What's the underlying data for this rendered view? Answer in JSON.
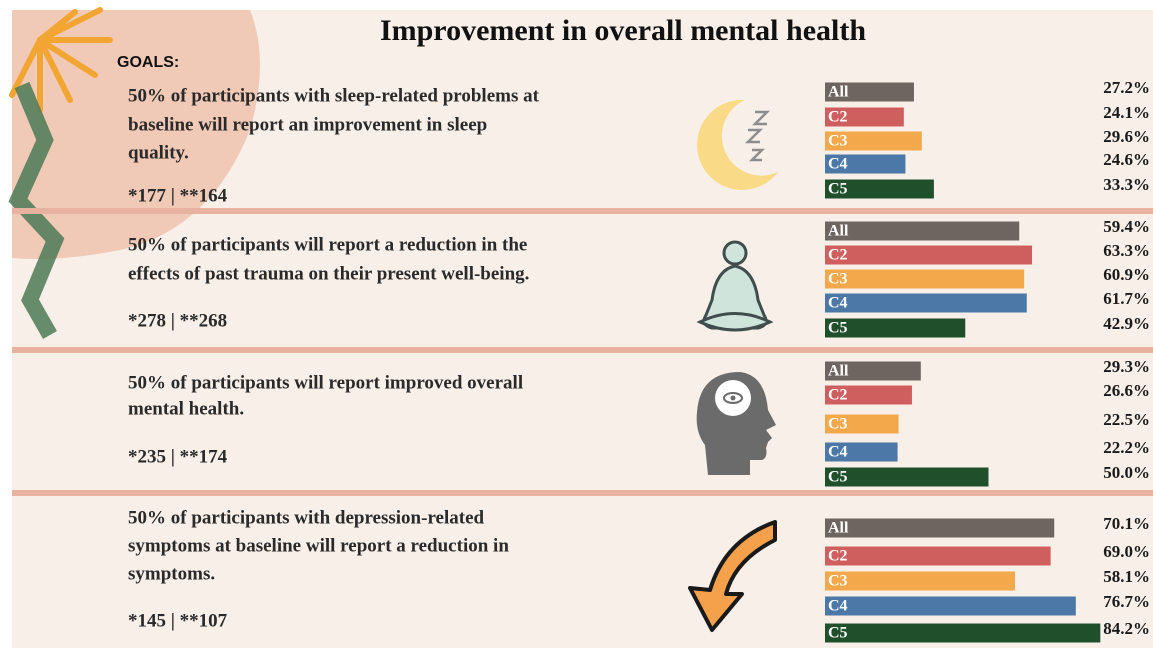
{
  "title": "Improvement in overall mental health",
  "goals_label": "GOALS:",
  "chart_data": [
    {
      "type": "bar",
      "description": [
        "50% of participants with sleep-related problems at",
        "baseline will report an improvement in sleep",
        "quality."
      ],
      "counts": "*177 | **164",
      "categories": [
        "All",
        "C2",
        "C3",
        "C4",
        "C5"
      ],
      "colors": [
        "#6e6560",
        "#cf5f5f",
        "#f3a84b",
        "#4b78a6",
        "#1f4f2b"
      ],
      "values": [
        27.2,
        24.1,
        29.6,
        24.6,
        33.3
      ],
      "value_labels": [
        "27.2%",
        "24.1%",
        "29.6%",
        "24.6%",
        "33.3%"
      ]
    },
    {
      "type": "bar",
      "description": [
        "50% of participants will report a reduction in the",
        "effects of past trauma on their present well-being."
      ],
      "counts": "*278 | **268",
      "categories": [
        "All",
        "C2",
        "C3",
        "C4",
        "C5"
      ],
      "colors": [
        "#6e6560",
        "#cf5f5f",
        "#f3a84b",
        "#4b78a6",
        "#1f4f2b"
      ],
      "values": [
        59.4,
        63.3,
        60.9,
        61.7,
        42.9
      ],
      "value_labels": [
        "59.4%",
        "63.3%",
        "60.9%",
        "61.7%",
        "42.9%"
      ]
    },
    {
      "type": "bar",
      "description": [
        "50% of participants will report improved overall",
        "mental health."
      ],
      "counts": "*235 | **174",
      "categories": [
        "All",
        "C2",
        "C3",
        "C4",
        "C5"
      ],
      "colors": [
        "#6e6560",
        "#cf5f5f",
        "#f3a84b",
        "#4b78a6",
        "#1f4f2b"
      ],
      "values": [
        29.3,
        26.6,
        22.5,
        22.2,
        50.0
      ],
      "value_labels": [
        "29.3%",
        "26.6%",
        "22.5%",
        "22.2%",
        "50.0%"
      ]
    },
    {
      "type": "bar",
      "description": [
        "50% of participants with depression-related",
        "symptoms at baseline will report a reduction in",
        "symptoms."
      ],
      "counts": "*145 | **107",
      "categories": [
        "All",
        "C2",
        "C3",
        "C4",
        "C5"
      ],
      "colors": [
        "#6e6560",
        "#cf5f5f",
        "#f3a84b",
        "#4b78a6",
        "#1f4f2b"
      ],
      "values": [
        70.1,
        69.0,
        58.1,
        76.7,
        84.2
      ],
      "value_labels": [
        "70.1%",
        "69.0%",
        "58.1%",
        "76.7%",
        "84.2%"
      ]
    }
  ]
}
